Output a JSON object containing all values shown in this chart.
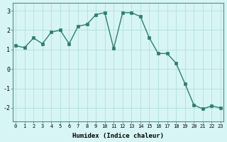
{
  "x": [
    0,
    1,
    2,
    3,
    4,
    5,
    6,
    7,
    8,
    9,
    10,
    11,
    12,
    13,
    14,
    15,
    16,
    17,
    18,
    19,
    20,
    21,
    22,
    23
  ],
  "y": [
    1.2,
    1.1,
    1.6,
    1.3,
    1.9,
    2.0,
    1.3,
    2.2,
    2.3,
    2.8,
    2.9,
    1.05,
    2.9,
    2.9,
    2.7,
    1.6,
    0.8,
    0.8,
    0.3,
    -0.75,
    -1.85,
    -2.05,
    -1.9,
    -2.0
  ],
  "xlabel": "Humidex (Indice chaleur)",
  "ylim": [
    -2.7,
    3.4
  ],
  "xlim": [
    -0.3,
    23.3
  ],
  "yticks": [
    -2,
    -1,
    0,
    1,
    2,
    3
  ],
  "xticks": [
    0,
    1,
    2,
    3,
    4,
    5,
    6,
    7,
    8,
    9,
    10,
    11,
    12,
    13,
    14,
    15,
    16,
    17,
    18,
    19,
    20,
    21,
    22,
    23
  ],
  "line_color": "#2e7d6e",
  "marker_color": "#2e7d6e",
  "bg_color": "#d8f5f5",
  "grid_color": "#b0dede",
  "spine_color": "#4a9090"
}
